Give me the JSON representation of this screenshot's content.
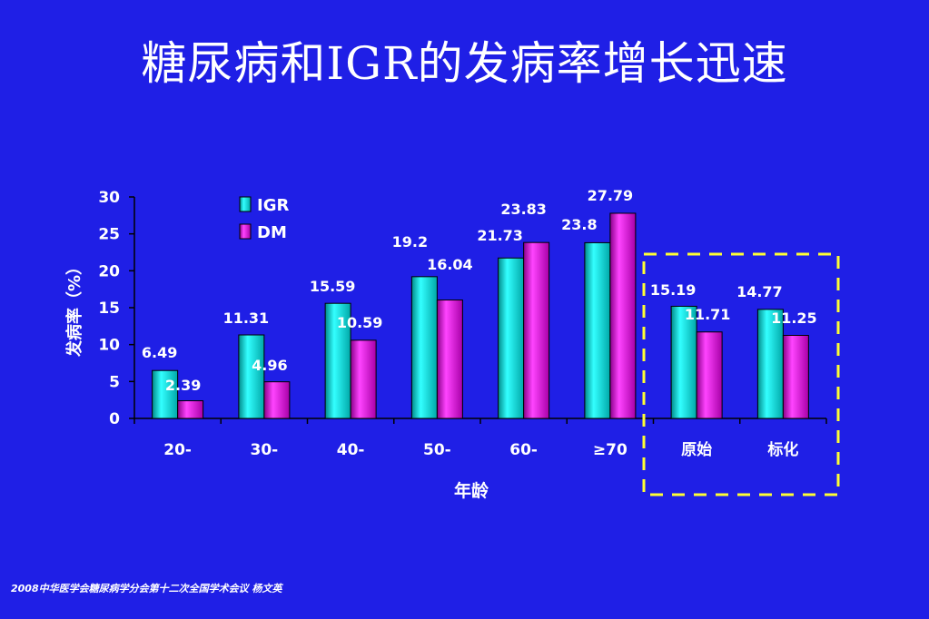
{
  "title": "糖尿病和IGR的发病率增长迅速",
  "footer": "2008中华医学会糖尿病学分会第十二次全国学术会议 杨文英",
  "colors": {
    "background": "#1f1fe6",
    "igr_fill": "#00e0e0",
    "dm_fill": "#e020e0",
    "highlight_box": "#ffff33",
    "text": "#ffffff"
  },
  "chart_data": {
    "type": "bar",
    "xlabel": "年龄",
    "ylabel": "发病率（%）",
    "ylim": [
      0,
      30
    ],
    "yticks": [
      "0",
      "5",
      "10",
      "15",
      "20",
      "25",
      "30"
    ],
    "categories": [
      "20-",
      "30-",
      "40-",
      "50-",
      "60-",
      "≥70",
      "原始",
      "标化"
    ],
    "series": [
      {
        "name": "IGR",
        "values": [
          6.49,
          11.31,
          15.59,
          19.2,
          21.73,
          23.8,
          15.19,
          14.77
        ],
        "labels": [
          "6.49",
          "11.31",
          "15.59",
          "19.2",
          "21.73",
          "23.8",
          "15.19",
          "14.77"
        ]
      },
      {
        "name": "DM",
        "values": [
          2.39,
          4.96,
          10.59,
          16.04,
          23.83,
          27.79,
          11.71,
          11.25
        ],
        "labels": [
          "2.39",
          "4.96",
          "10.59",
          "16.04",
          "23.83",
          "27.79",
          "11.71",
          "11.25"
        ]
      }
    ],
    "legend_position": "top-left",
    "grid": false,
    "highlighted_categories": [
      "原始",
      "标化"
    ]
  }
}
